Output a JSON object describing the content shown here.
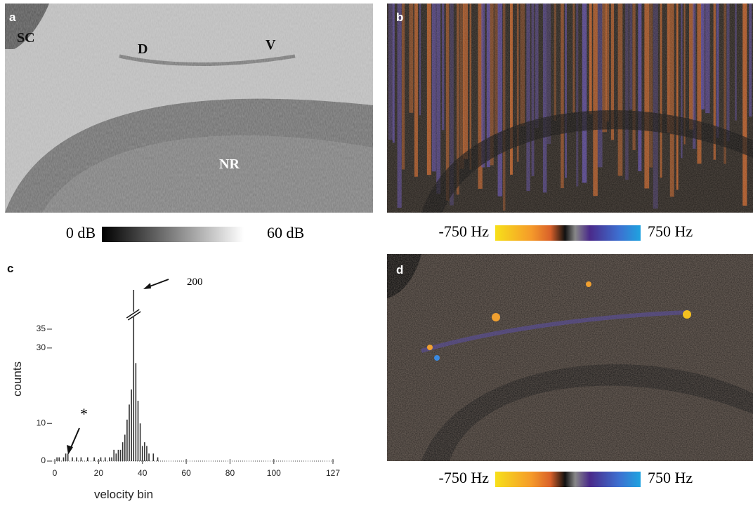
{
  "panels": {
    "a": {
      "label": "a",
      "annotations": [
        "SC",
        "D",
        "V",
        "NR"
      ],
      "colorbar": {
        "min_label": "0 dB",
        "max_label": "60 dB"
      }
    },
    "b": {
      "label": "b",
      "colorbar": {
        "min_label": "-750 Hz",
        "max_label": "750 Hz"
      }
    },
    "d": {
      "label": "d",
      "colorbar": {
        "min_label": "-750 Hz",
        "max_label": "750 Hz"
      }
    }
  },
  "chart_data": {
    "type": "bar",
    "panel_label": "c",
    "x_label": "velocity bin",
    "y_label": "counts",
    "x": [
      1,
      2,
      4,
      5,
      6,
      8,
      10,
      12,
      15,
      18,
      21,
      23,
      25,
      26,
      27,
      28,
      29,
      30,
      31,
      32,
      33,
      34,
      35,
      36,
      37,
      38,
      39,
      40,
      41,
      42,
      43,
      45,
      47
    ],
    "values": [
      1,
      1,
      1,
      2,
      2,
      1,
      1,
      1,
      1,
      1,
      1,
      1,
      1,
      1,
      3,
      2,
      3,
      3,
      5,
      7,
      11,
      15,
      19,
      200,
      26,
      16,
      10,
      4,
      5,
      4,
      2,
      2,
      1
    ],
    "color": "#333333",
    "xlim": [
      0,
      127
    ],
    "xticks": [
      0,
      20,
      40,
      60,
      80,
      100,
      127
    ],
    "ylim": [
      0,
      200
    ],
    "yticks": [
      0,
      10,
      30,
      35
    ],
    "y_break": true,
    "annotations": [
      "200",
      "*"
    ]
  }
}
